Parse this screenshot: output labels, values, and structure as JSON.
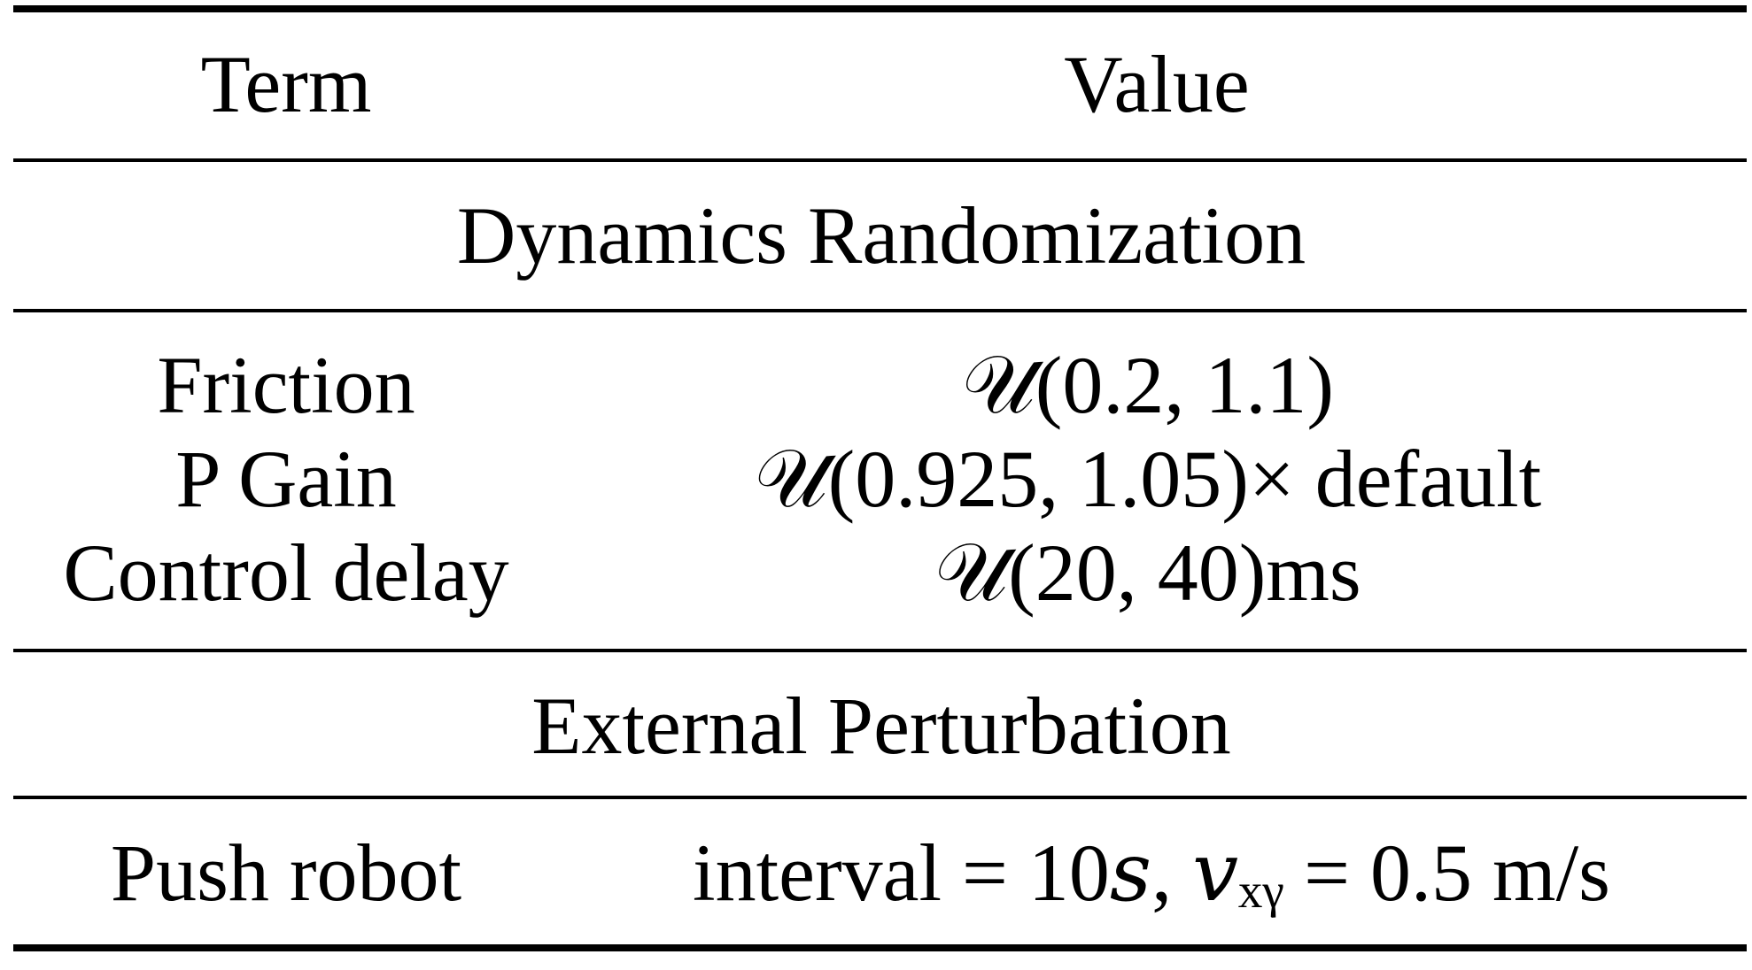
{
  "table": {
    "header": [
      "Term",
      "Value"
    ],
    "sections": [
      {
        "title": "Dynamics Randomization",
        "rows": [
          [
            "Friction",
            "𝒰(0.2, 1.1)"
          ],
          [
            "P Gain",
            "𝒰(0.925, 1.05)× default"
          ],
          [
            "Control delay",
            "𝒰(20, 40)ms"
          ]
        ]
      },
      {
        "title": "External Perturbation",
        "rows": [
          [
            "Push robot",
            "interval = 10𝑠, 𝑣ₓᵧ = 0.5 m/s"
          ]
        ]
      }
    ]
  }
}
